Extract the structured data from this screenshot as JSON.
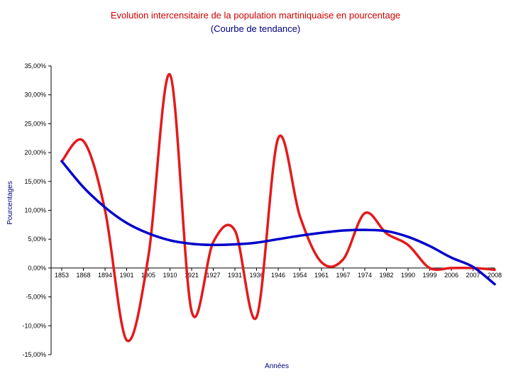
{
  "chart_data": {
    "type": "line",
    "title": "Evolution intercensitaire de la population martiniquaise en pourcentage",
    "subtitle": "(Courbe de tendance)",
    "xlabel": "Années",
    "ylabel": "Pourcentages",
    "categories": [
      "1853",
      "1868",
      "1894",
      "1901",
      "1905",
      "1910",
      "1921",
      "1927",
      "1931",
      "1936",
      "1946",
      "1954",
      "1961",
      "1967",
      "1974",
      "1982",
      "1990",
      "1999",
      "2006",
      "2007",
      "2008"
    ],
    "ylim": [
      -15,
      35
    ],
    "yticks": [
      35,
      30,
      25,
      20,
      15,
      10,
      5,
      0,
      -5,
      -10,
      -15
    ],
    "ytick_labels": [
      "35,00%",
      "30,00%",
      "25,00%",
      "20,00%",
      "15,00%",
      "10,00%",
      "5,00%",
      "0,00%",
      "-5,00%",
      "-10,00%",
      "-15,00%"
    ],
    "grid": false,
    "series": [
      {
        "name": "Evolution intercensitaire",
        "color": "#e31a1c",
        "values": [
          18.5,
          22.0,
          10.0,
          -12.5,
          2.0,
          33.5,
          -7.5,
          4.5,
          6.5,
          -8.5,
          22.5,
          9.0,
          1.0,
          1.5,
          9.5,
          6.0,
          4.0,
          0.0,
          0.0,
          0.0,
          -0.3
        ]
      },
      {
        "name": "Courbe de tendance",
        "color": "#0000cc",
        "values": [
          18.5,
          14.0,
          10.5,
          7.8,
          6.0,
          4.8,
          4.2,
          4.0,
          4.1,
          4.4,
          5.0,
          5.6,
          6.1,
          6.5,
          6.6,
          6.4,
          5.4,
          3.8,
          1.8,
          0.2,
          -2.8
        ]
      }
    ]
  }
}
